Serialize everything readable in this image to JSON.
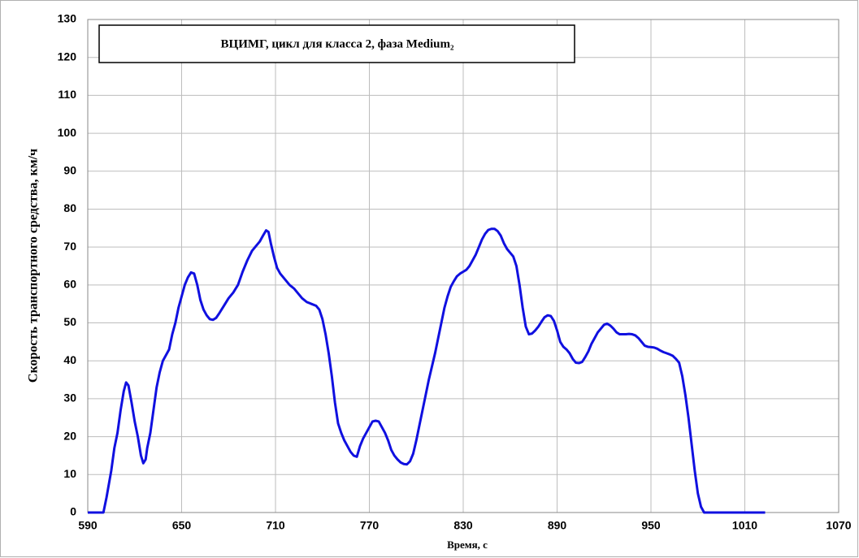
{
  "chart_data": {
    "type": "line",
    "title": "ВЦИМГ, цикл для класса 2, фаза Medium₂",
    "xlabel": "Время, с",
    "ylabel": "Скорость транспортного средства, км/ч",
    "x": [
      590,
      600,
      602,
      605,
      607,
      609,
      611,
      613,
      614.5,
      616,
      618,
      620,
      622,
      624,
      625.5,
      627,
      628,
      630,
      632,
      634,
      636,
      638,
      640,
      642,
      644,
      646,
      648,
      650,
      652,
      654,
      656,
      658,
      660,
      662,
      664,
      666,
      668,
      670,
      672,
      674,
      677,
      680,
      683,
      686,
      689,
      692,
      695,
      698,
      700,
      702,
      704,
      705.5,
      707,
      709,
      711,
      713,
      716,
      719,
      722,
      725,
      727,
      730,
      733,
      736,
      738,
      740,
      742,
      744,
      746,
      748,
      750,
      752,
      754,
      756,
      758,
      760,
      762,
      764,
      766,
      768,
      770,
      772,
      774,
      776,
      778,
      780,
      782,
      784,
      786,
      788,
      790,
      792,
      794,
      796,
      798,
      800,
      802,
      804,
      806,
      808,
      810,
      812,
      814,
      816,
      818,
      820,
      822,
      824,
      826,
      828,
      830,
      832,
      834,
      836,
      838,
      840,
      842,
      844,
      846,
      848,
      850,
      852,
      854,
      856,
      858,
      860,
      862,
      864,
      866,
      868,
      870,
      872,
      874,
      876,
      878,
      880,
      882,
      884,
      886,
      888,
      890,
      892,
      894,
      896,
      898,
      900,
      902,
      904,
      906,
      908,
      910,
      912,
      914,
      916,
      918,
      920,
      922,
      924,
      926,
      928,
      930,
      932,
      934,
      936,
      938,
      940,
      942,
      944,
      946,
      948,
      950,
      952,
      954,
      956,
      958,
      960,
      962,
      964,
      966,
      968,
      970,
      972,
      974,
      976,
      978,
      980,
      982,
      984,
      1023
    ],
    "series": [
      {
        "color": "#1010e0",
        "values": [
          0,
          0,
          4,
          11,
          17,
          21,
          27,
          32,
          34.3,
          33.5,
          29,
          24,
          20,
          15,
          13,
          14,
          17,
          21,
          27,
          33,
          37,
          40,
          41.5,
          43,
          47,
          50,
          54,
          57,
          60,
          62,
          63.3,
          63,
          60,
          56,
          53.5,
          52,
          51,
          50.8,
          51.3,
          52.5,
          54.5,
          56.5,
          58,
          60,
          63.5,
          66.5,
          69,
          70.5,
          71.5,
          73,
          74.4,
          74,
          71,
          67.5,
          64.5,
          63,
          61.5,
          60,
          59,
          57.5,
          56.5,
          55.5,
          55,
          54.5,
          53.5,
          51,
          47,
          42,
          36,
          29,
          23.5,
          21,
          19,
          17.5,
          16,
          15,
          14.7,
          17.5,
          19.5,
          21,
          22.5,
          24,
          24.2,
          24,
          22.5,
          21,
          19,
          16.5,
          15,
          14,
          13.2,
          12.8,
          12.7,
          13.5,
          15.5,
          19,
          23,
          27,
          31,
          35,
          38.5,
          42,
          46,
          50,
          54,
          57,
          59.5,
          61,
          62.3,
          63,
          63.5,
          64,
          65,
          66.5,
          68,
          70,
          72,
          73.5,
          74.5,
          74.8,
          74.8,
          74.2,
          73,
          71,
          69.5,
          68.5,
          67.5,
          65,
          60,
          54,
          49,
          47,
          47.2,
          48,
          49,
          50.3,
          51.5,
          52,
          51.8,
          50.5,
          48,
          45,
          43.7,
          43,
          42,
          40.5,
          39.5,
          39.4,
          39.7,
          41,
          42.5,
          44.5,
          46,
          47.5,
          48.5,
          49.5,
          49.8,
          49.3,
          48.5,
          47.5,
          47,
          47,
          47,
          47.1,
          47,
          46.7,
          46,
          45,
          44,
          43.7,
          43.6,
          43.5,
          43.2,
          42.7,
          42.3,
          42,
          41.7,
          41.3,
          40.5,
          39.5,
          36,
          31,
          25,
          18,
          11,
          5,
          1.5,
          0,
          0
        ]
      }
    ],
    "xlim": [
      590,
      1070
    ],
    "xticks": [
      590,
      650,
      710,
      770,
      830,
      890,
      950,
      1010,
      1070
    ],
    "ylim": [
      0,
      130
    ],
    "yticks": [
      0,
      10,
      20,
      30,
      40,
      50,
      60,
      70,
      80,
      90,
      100,
      110,
      120,
      130
    ],
    "grid": true
  }
}
